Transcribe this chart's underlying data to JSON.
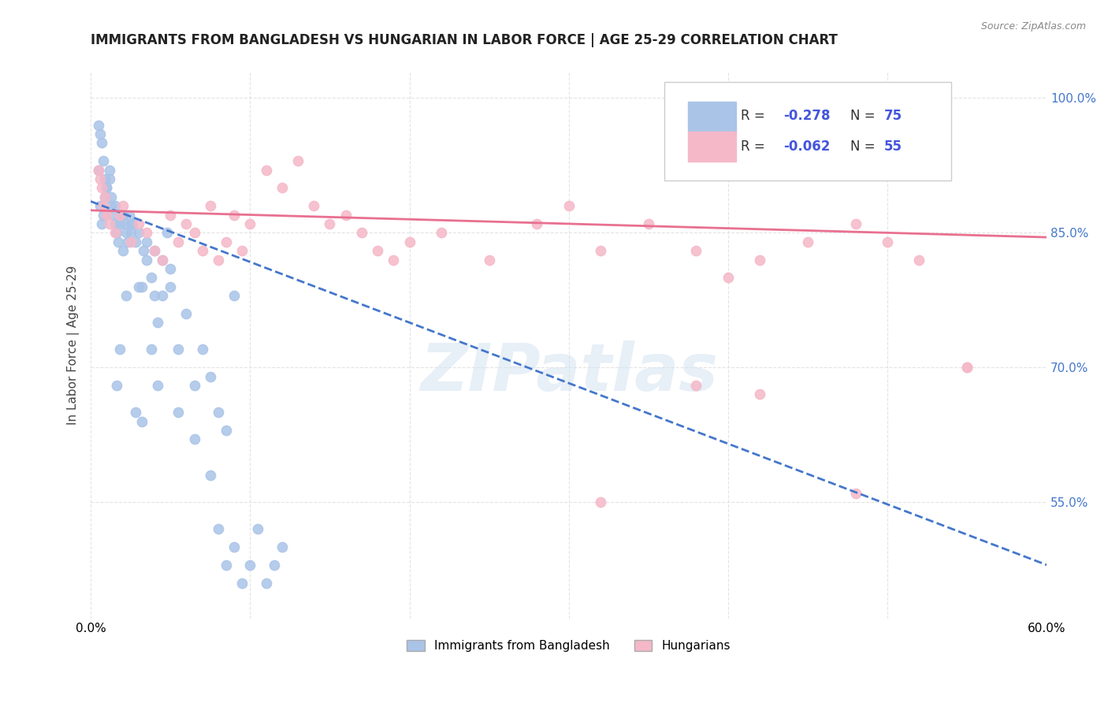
{
  "title": "IMMIGRANTS FROM BANGLADESH VS HUNGARIAN IN LABOR FORCE | AGE 25-29 CORRELATION CHART",
  "source": "Source: ZipAtlas.com",
  "xlabel_bottom": "",
  "ylabel": "In Labor Force | Age 25-29",
  "x_min": 0.0,
  "x_max": 0.6,
  "y_min": 0.42,
  "y_max": 1.03,
  "x_ticks": [
    0.0,
    0.1,
    0.2,
    0.3,
    0.4,
    0.5,
    0.6
  ],
  "x_tick_labels": [
    "0.0%",
    "",
    "",
    "",
    "",
    "",
    "60.0%"
  ],
  "y_ticks": [
    0.55,
    0.7,
    0.85,
    1.0
  ],
  "y_tick_labels": [
    "55.0%",
    "70.0%",
    "85.0%",
    "100.0%"
  ],
  "background_color": "#ffffff",
  "grid_color": "#dddddd",
  "bangladesh_color": "#aac4e8",
  "hungarian_color": "#f5b8c8",
  "bangladesh_line_color": "#4477cc",
  "hungarian_line_color": "#e87090",
  "legend_r_bangladesh": "R = -0.278",
  "legend_n_bangladesh": "N = 75",
  "legend_r_hungarian": "R = -0.062",
  "legend_n_hungarian": "N = 55",
  "r_value_color": "#4455dd",
  "n_value_color": "#4455dd",
  "bangladesh_scatter_x": [
    0.005,
    0.006,
    0.007,
    0.008,
    0.009,
    0.01,
    0.012,
    0.013,
    0.014,
    0.015,
    0.016,
    0.017,
    0.018,
    0.019,
    0.02,
    0.021,
    0.022,
    0.023,
    0.024,
    0.025,
    0.026,
    0.028,
    0.03,
    0.032,
    0.033,
    0.035,
    0.038,
    0.04,
    0.042,
    0.045,
    0.048,
    0.05,
    0.055,
    0.06,
    0.065,
    0.07,
    0.075,
    0.08,
    0.085,
    0.09,
    0.005,
    0.006,
    0.007,
    0.008,
    0.009,
    0.01,
    0.012,
    0.013,
    0.015,
    0.02,
    0.025,
    0.03,
    0.035,
    0.04,
    0.045,
    0.05,
    0.022,
    0.018,
    0.016,
    0.028,
    0.032,
    0.038,
    0.042,
    0.055,
    0.065,
    0.075,
    0.08,
    0.085,
    0.09,
    0.095,
    0.1,
    0.105,
    0.11,
    0.115,
    0.12
  ],
  "bangladesh_scatter_y": [
    0.92,
    0.88,
    0.86,
    0.87,
    0.89,
    0.9,
    0.91,
    0.88,
    0.87,
    0.86,
    0.85,
    0.84,
    0.86,
    0.87,
    0.83,
    0.86,
    0.85,
    0.84,
    0.87,
    0.85,
    0.86,
    0.84,
    0.79,
    0.79,
    0.83,
    0.82,
    0.8,
    0.78,
    0.75,
    0.78,
    0.85,
    0.79,
    0.72,
    0.76,
    0.68,
    0.72,
    0.69,
    0.65,
    0.63,
    0.78,
    0.97,
    0.96,
    0.95,
    0.93,
    0.91,
    0.9,
    0.92,
    0.89,
    0.88,
    0.87,
    0.86,
    0.85,
    0.84,
    0.83,
    0.82,
    0.81,
    0.78,
    0.72,
    0.68,
    0.65,
    0.64,
    0.72,
    0.68,
    0.65,
    0.62,
    0.58,
    0.52,
    0.48,
    0.5,
    0.46,
    0.48,
    0.52,
    0.46,
    0.48,
    0.5
  ],
  "hungarian_scatter_x": [
    0.005,
    0.006,
    0.007,
    0.008,
    0.009,
    0.01,
    0.012,
    0.015,
    0.018,
    0.02,
    0.025,
    0.03,
    0.035,
    0.04,
    0.045,
    0.05,
    0.055,
    0.06,
    0.065,
    0.07,
    0.075,
    0.08,
    0.085,
    0.09,
    0.095,
    0.1,
    0.11,
    0.12,
    0.13,
    0.14,
    0.15,
    0.16,
    0.17,
    0.18,
    0.19,
    0.2,
    0.22,
    0.25,
    0.28,
    0.3,
    0.32,
    0.35,
    0.38,
    0.4,
    0.42,
    0.45,
    0.48,
    0.5,
    0.52,
    0.55,
    0.32,
    0.38,
    0.42,
    0.48,
    0.55
  ],
  "hungarian_scatter_y": [
    0.92,
    0.91,
    0.9,
    0.88,
    0.89,
    0.87,
    0.86,
    0.85,
    0.87,
    0.88,
    0.84,
    0.86,
    0.85,
    0.83,
    0.82,
    0.87,
    0.84,
    0.86,
    0.85,
    0.83,
    0.88,
    0.82,
    0.84,
    0.87,
    0.83,
    0.86,
    0.92,
    0.9,
    0.93,
    0.88,
    0.86,
    0.87,
    0.85,
    0.83,
    0.82,
    0.84,
    0.85,
    0.82,
    0.86,
    0.88,
    0.83,
    0.86,
    0.83,
    0.8,
    0.82,
    0.84,
    0.86,
    0.84,
    0.82,
    0.7,
    0.55,
    0.68,
    0.67,
    0.56,
    0.7
  ],
  "bangladesh_trend_x": [
    0.0,
    0.6
  ],
  "bangladesh_trend_y": [
    0.885,
    0.48
  ],
  "hungarian_trend_x": [
    0.0,
    0.6
  ],
  "hungarian_trend_y": [
    0.875,
    0.845
  ],
  "watermark_text": "ZIPatlas",
  "watermark_color": "#d0e0f0",
  "watermark_alpha": 0.5
}
